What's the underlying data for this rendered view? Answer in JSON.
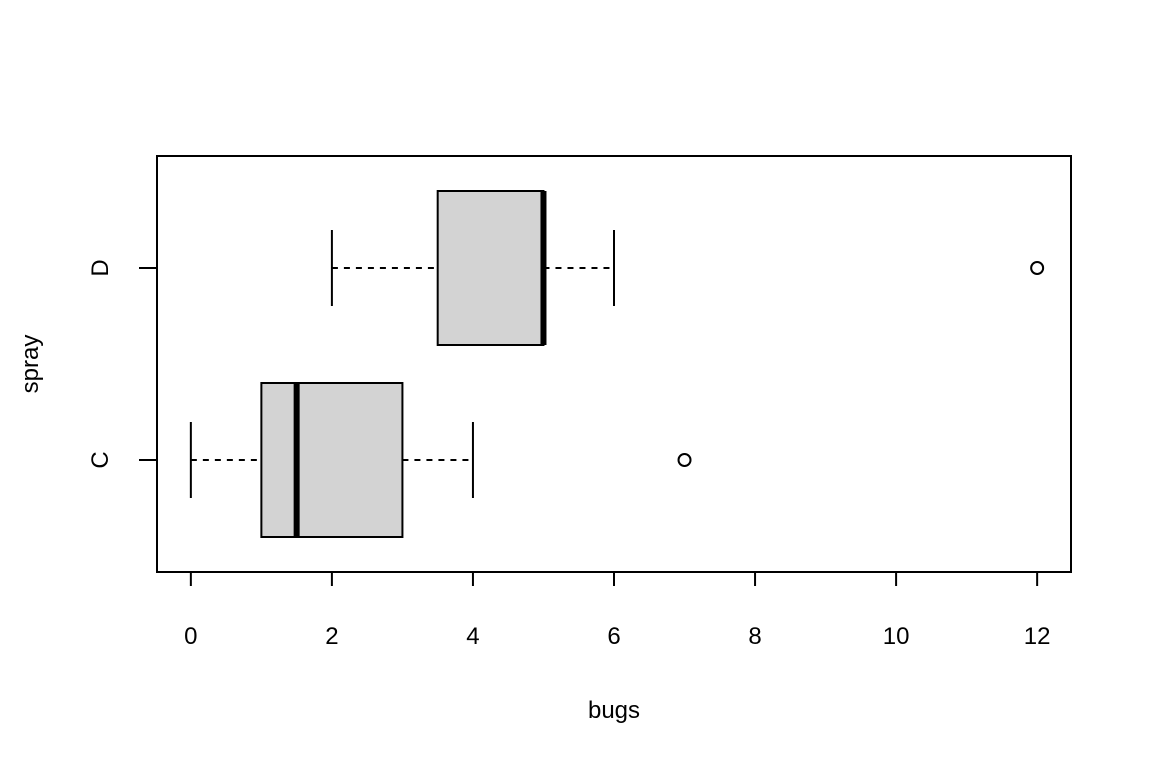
{
  "chart_data": {
    "type": "boxplot",
    "orientation": "horizontal",
    "title": "",
    "xlabel": "bugs",
    "ylabel": "spray",
    "xlim": [
      -0.48,
      12.48
    ],
    "xticks": [
      0,
      2,
      4,
      6,
      8,
      10,
      12
    ],
    "grid": false,
    "box_fill": "#d3d3d3",
    "line_color": "#000000",
    "groups": [
      {
        "label": "C",
        "whisker_low": 0,
        "q1": 1,
        "median": 1.5,
        "q3": 3,
        "whisker_high": 4,
        "outliers": [
          7
        ]
      },
      {
        "label": "D",
        "whisker_low": 2,
        "q1": 3.5,
        "median": 5,
        "q3": 5,
        "whisker_high": 6,
        "outliers": [
          12
        ]
      }
    ]
  }
}
